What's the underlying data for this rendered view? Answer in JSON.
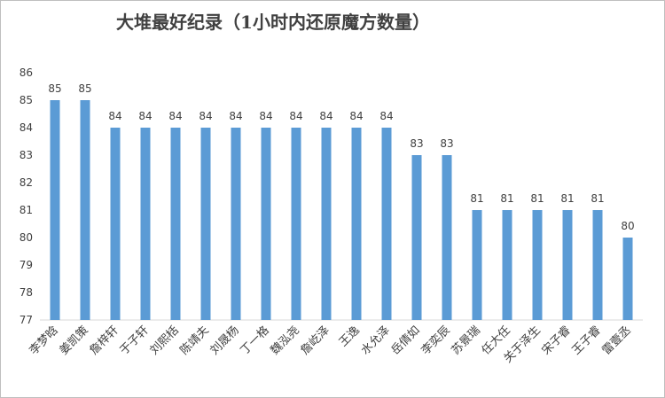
{
  "chart_data": {
    "type": "bar",
    "title": "大堆最好纪录（1小时内还原魔方数量）",
    "categories": [
      "李梦晗",
      "姜凯策",
      "詹梓轩",
      "于子轩",
      "刘熙栝",
      "陈靖夫",
      "刘晟杨",
      "丁一格",
      "魏泓尧",
      "詹屹泽",
      "王逸",
      "水允泽",
      "岳倩如",
      "李奕辰",
      "苏景瑞",
      "任大任",
      "关于泽生",
      "宋子睿",
      "王子睿",
      "雷壹丞"
    ],
    "values": [
      85,
      85,
      84,
      84,
      84,
      84,
      84,
      84,
      84,
      84,
      84,
      84,
      83,
      83,
      81,
      81,
      81,
      81,
      81,
      80
    ],
    "color": "#5b9bd5",
    "ylim": [
      77,
      86
    ],
    "yticks": [
      77,
      78,
      79,
      80,
      81,
      82,
      83,
      84,
      85,
      86
    ],
    "grid": false
  }
}
